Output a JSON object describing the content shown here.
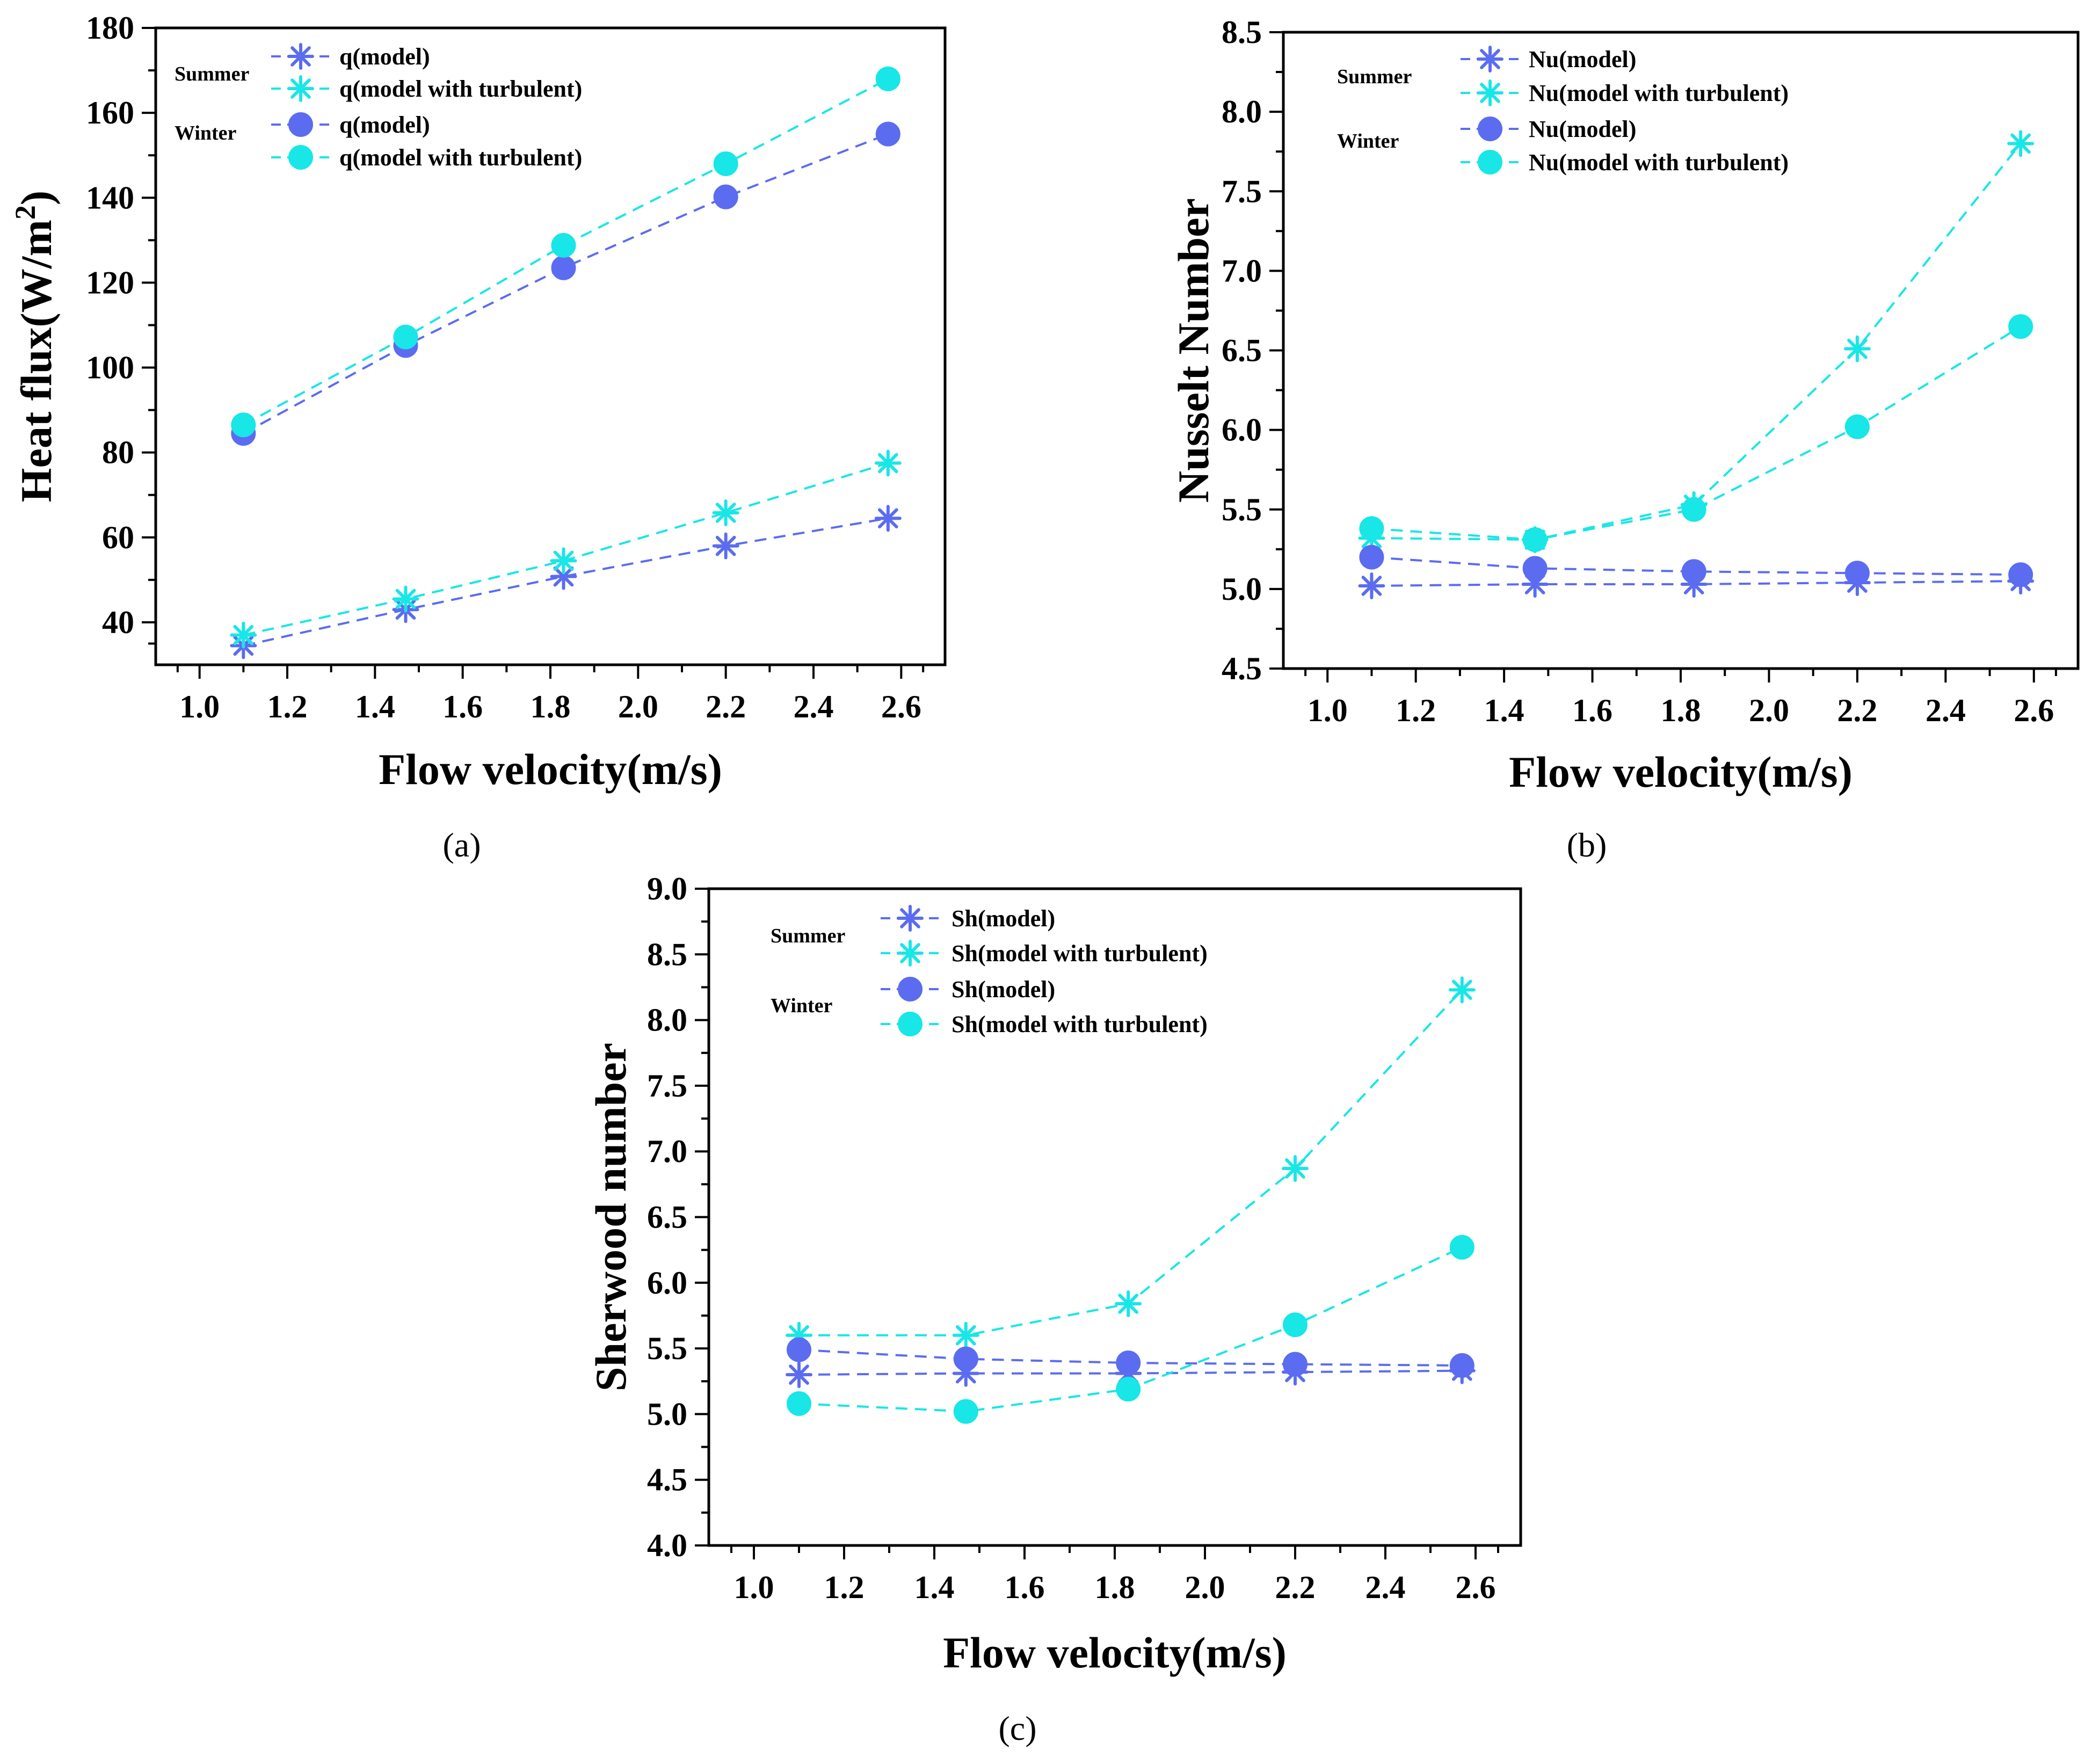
{
  "colors": {
    "model": "#5b6cf0",
    "turbulent": "#19e6e6"
  },
  "chart_data": [
    {
      "id": "a",
      "type": "line",
      "panel_label": "(a)",
      "xlabel": "Flow velocity(m/s)",
      "ylabel": "Heat flux(W/m",
      "ylabel_sup": "2",
      "ylabel_close": ")",
      "xlim": [
        0.9,
        2.7
      ],
      "ylim": [
        30,
        180
      ],
      "xticks": [
        "1.0",
        "1.2",
        "1.4",
        "1.6",
        "1.8",
        "2.0",
        "2.2",
        "2.4",
        "2.6"
      ],
      "yticks": [
        "40",
        "60",
        "80",
        "100",
        "120",
        "140",
        "160",
        "180"
      ],
      "legend_groups": [
        "Summer",
        "Winter"
      ],
      "x": [
        1.1,
        1.47,
        1.83,
        2.2,
        2.57
      ],
      "series": [
        {
          "name": "q(model)",
          "group": "Summer",
          "marker": "star",
          "color_key": "model",
          "values": [
            34.5,
            43.0,
            50.8,
            58.0,
            64.5
          ]
        },
        {
          "name": "q(model with turbulent)",
          "group": "Summer",
          "marker": "star",
          "color_key": "turbulent",
          "values": [
            37.0,
            45.5,
            54.5,
            65.8,
            77.5
          ]
        },
        {
          "name": "q(model)",
          "group": "Winter",
          "marker": "circle",
          "color_key": "model",
          "values": [
            84.5,
            105.2,
            123.5,
            140.2,
            155.0
          ]
        },
        {
          "name": "q(model with turbulent)",
          "group": "Winter",
          "marker": "circle",
          "color_key": "turbulent",
          "values": [
            86.5,
            107.2,
            128.8,
            148.0,
            168.0
          ]
        }
      ]
    },
    {
      "id": "b",
      "type": "line",
      "panel_label": "(b)",
      "xlabel": "Flow velocity(m/s)",
      "ylabel": "Nusselt Number",
      "xlim": [
        0.9,
        2.7
      ],
      "ylim": [
        4.5,
        8.5
      ],
      "xticks": [
        "1.0",
        "1.2",
        "1.4",
        "1.6",
        "1.8",
        "2.0",
        "2.2",
        "2.4",
        "2.6"
      ],
      "yticks": [
        "4.5",
        "5.0",
        "5.5",
        "6.0",
        "6.5",
        "7.0",
        "7.5",
        "8.0",
        "8.5"
      ],
      "legend_groups": [
        "Summer",
        "Winter"
      ],
      "x": [
        1.1,
        1.47,
        1.83,
        2.2,
        2.57
      ],
      "series": [
        {
          "name": "Nu(model)",
          "group": "Summer",
          "marker": "star",
          "color_key": "model",
          "values": [
            5.02,
            5.03,
            5.03,
            5.04,
            5.05
          ]
        },
        {
          "name": "Nu(model with turbulent)",
          "group": "Summer",
          "marker": "star",
          "color_key": "turbulent",
          "values": [
            5.32,
            5.31,
            5.53,
            6.51,
            7.8
          ]
        },
        {
          "name": "Nu(model)",
          "group": "Winter",
          "marker": "circle",
          "color_key": "model",
          "values": [
            5.2,
            5.13,
            5.11,
            5.1,
            5.09
          ]
        },
        {
          "name": "Nu(model with turbulent)",
          "group": "Winter",
          "marker": "circle",
          "color_key": "turbulent",
          "values": [
            5.38,
            5.31,
            5.5,
            6.02,
            6.65
          ]
        }
      ]
    },
    {
      "id": "c",
      "type": "line",
      "panel_label": "(c)",
      "xlabel": "Flow velocity(m/s)",
      "ylabel": "Sherwood number",
      "xlim": [
        0.9,
        2.7
      ],
      "ylim": [
        4.0,
        9.0
      ],
      "xticks": [
        "1.0",
        "1.2",
        "1.4",
        "1.6",
        "1.8",
        "2.0",
        "2.2",
        "2.4",
        "2.6"
      ],
      "yticks": [
        "4.0",
        "4.5",
        "5.0",
        "5.5",
        "6.0",
        "6.5",
        "7.0",
        "7.5",
        "8.0",
        "8.5",
        "9.0"
      ],
      "legend_groups": [
        "Summer",
        "Winter"
      ],
      "x": [
        1.1,
        1.47,
        1.83,
        2.2,
        2.57
      ],
      "series": [
        {
          "name": "Sh(model)",
          "group": "Summer",
          "marker": "star",
          "color_key": "model",
          "values": [
            5.3,
            5.31,
            5.31,
            5.32,
            5.33
          ]
        },
        {
          "name": "Sh(model with turbulent)",
          "group": "Summer",
          "marker": "star",
          "color_key": "turbulent",
          "values": [
            5.6,
            5.6,
            5.84,
            6.87,
            8.23
          ]
        },
        {
          "name": "Sh(model)",
          "group": "Winter",
          "marker": "circle",
          "color_key": "model",
          "values": [
            5.49,
            5.42,
            5.39,
            5.38,
            5.37
          ]
        },
        {
          "name": "Sh(model with turbulent)",
          "group": "Winter",
          "marker": "circle",
          "color_key": "turbulent",
          "values": [
            5.08,
            5.02,
            5.19,
            5.68,
            6.27
          ]
        }
      ]
    }
  ]
}
